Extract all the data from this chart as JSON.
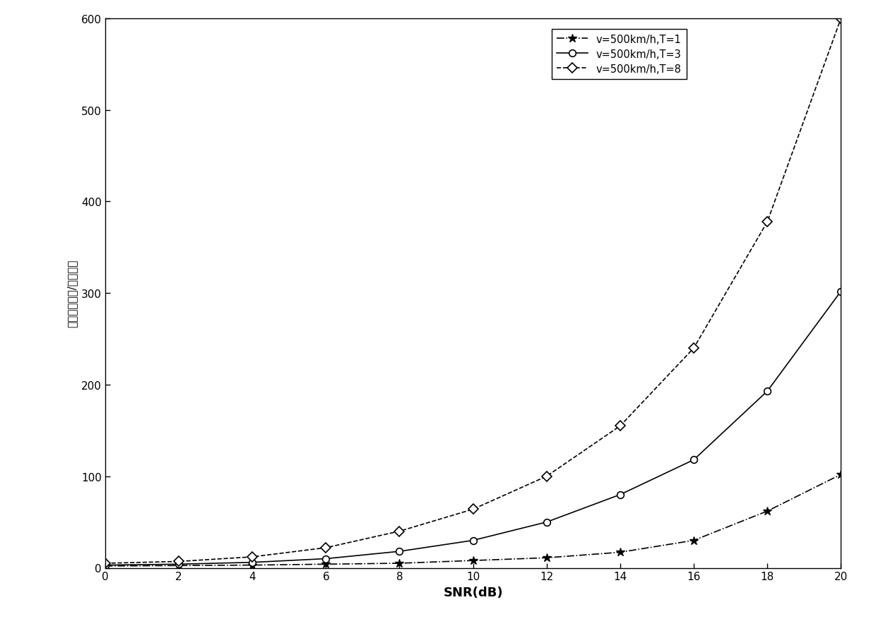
{
  "snr": [
    0,
    2,
    4,
    6,
    8,
    10,
    12,
    14,
    16,
    18,
    20
  ],
  "T1": [
    2,
    2.5,
    3,
    4,
    5,
    8,
    11,
    17,
    30,
    62,
    102
  ],
  "T3": [
    3,
    4,
    6,
    10,
    18,
    30,
    50,
    80,
    118,
    193,
    302
  ],
  "T8": [
    5,
    7,
    12,
    22,
    40,
    64,
    100,
    155,
    240,
    378,
    600
  ],
  "xlabel": "SNR(dB)",
  "ylabel": "应用能耗（元/时隙板）",
  "xlim": [
    0,
    20
  ],
  "ylim": [
    0,
    600
  ],
  "xticks": [
    0,
    2,
    4,
    6,
    8,
    10,
    12,
    14,
    16,
    18,
    20
  ],
  "yticks": [
    0,
    100,
    200,
    300,
    400,
    500,
    600
  ],
  "legend_T1": "v=500km/h,T=1",
  "legend_T3": "v=500km/h,T=3",
  "legend_T8": "v=500km/h,T=8",
  "line_color": "#000000",
  "bg_color": "#ffffff",
  "figsize": [
    12.4,
    8.95
  ],
  "dpi": 100
}
